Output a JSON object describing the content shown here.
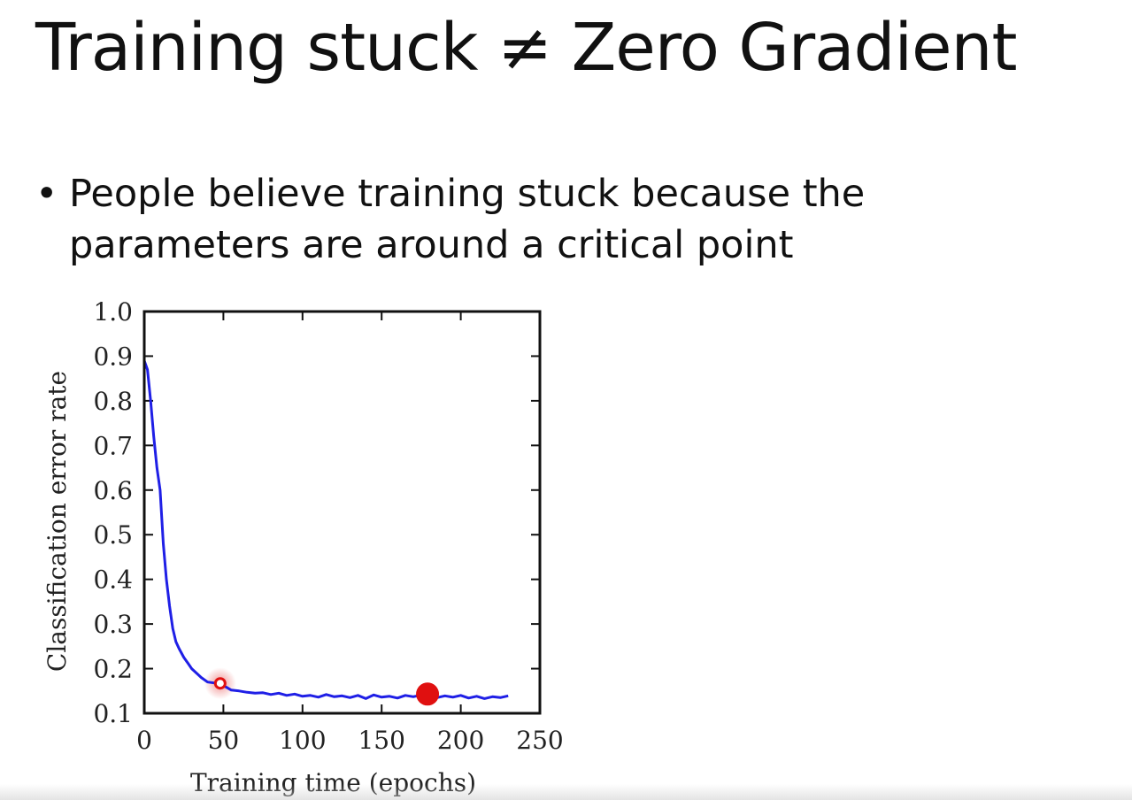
{
  "slide": {
    "title": "Training stuck ≠ Zero Gradient",
    "bullet_symbol": "•",
    "bullet_line1": "People believe training stuck because the",
    "bullet_line2": "parameters are around a critical point"
  },
  "chart_data": {
    "type": "line",
    "xlabel": "Training time (epochs)",
    "ylabel": "Classification error rate",
    "xlim": [
      0,
      250
    ],
    "ylim": [
      0.1,
      1.0
    ],
    "xticks": [
      0,
      50,
      100,
      150,
      200,
      250
    ],
    "yticks": [
      0.1,
      0.2,
      0.3,
      0.4,
      0.5,
      0.6,
      0.7,
      0.8,
      0.9,
      1.0
    ],
    "ytick_labels": [
      "0.1",
      "0.2",
      "0.3",
      "0.4",
      "0.5",
      "0.6",
      "0.7",
      "0.8",
      "0.9",
      "1.0"
    ],
    "grid": false,
    "line_color": "#1f1fe6",
    "marker_color": "#e01010",
    "series": [
      {
        "x": [
          0,
          2,
          4,
          6,
          8,
          10,
          12,
          14,
          16,
          18,
          20,
          22,
          25,
          28,
          30,
          33,
          36,
          40,
          44,
          48,
          52,
          55,
          60,
          65,
          70,
          75,
          80,
          85,
          90,
          95,
          100,
          105,
          110,
          115,
          120,
          125,
          130,
          135,
          140,
          145,
          150,
          155,
          160,
          165,
          170,
          175,
          180,
          185,
          190,
          195,
          200,
          205,
          210,
          215,
          220,
          225,
          230
        ],
        "y": [
          0.89,
          0.87,
          0.8,
          0.72,
          0.65,
          0.6,
          0.48,
          0.4,
          0.34,
          0.29,
          0.26,
          0.245,
          0.225,
          0.21,
          0.2,
          0.19,
          0.18,
          0.17,
          0.168,
          0.165,
          0.158,
          0.152,
          0.15,
          0.147,
          0.145,
          0.146,
          0.142,
          0.145,
          0.14,
          0.143,
          0.138,
          0.14,
          0.136,
          0.142,
          0.137,
          0.139,
          0.135,
          0.14,
          0.133,
          0.141,
          0.136,
          0.138,
          0.134,
          0.14,
          0.137,
          0.141,
          0.143,
          0.135,
          0.139,
          0.136,
          0.14,
          0.134,
          0.138,
          0.133,
          0.137,
          0.135,
          0.139
        ]
      }
    ],
    "markers": [
      {
        "x": 48,
        "y": 0.167,
        "style": "ring"
      },
      {
        "x": 179,
        "y": 0.143,
        "style": "filled"
      }
    ]
  }
}
